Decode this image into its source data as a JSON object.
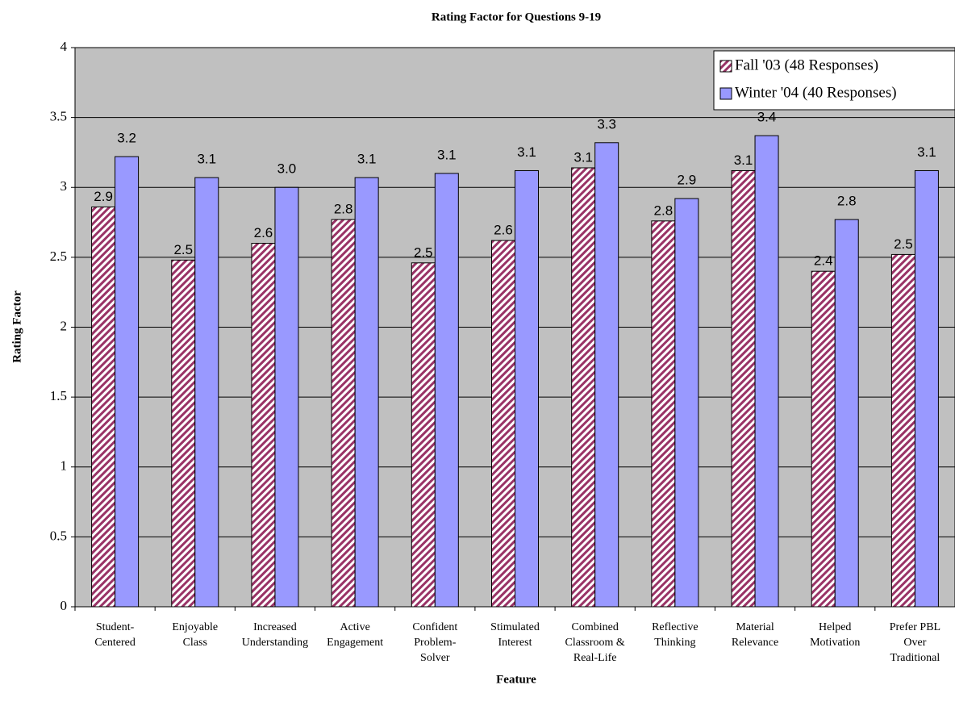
{
  "chart_data": {
    "type": "bar",
    "title": "Rating Factor for Questions 9-19",
    "xlabel": "Feature",
    "ylabel": "Rating Factor",
    "categories": [
      [
        "Student-",
        "Centered"
      ],
      [
        "Enjoyable",
        "Class"
      ],
      [
        "Increased",
        "Understanding"
      ],
      [
        "Active",
        "Engagement"
      ],
      [
        "Confident",
        "Problem-",
        "Solver"
      ],
      [
        "Stimulated",
        "Interest"
      ],
      [
        "Combined",
        "Classroom &",
        "Real-Life"
      ],
      [
        "Reflective",
        "Thinking"
      ],
      [
        "Material",
        "Relevance"
      ],
      [
        "Helped",
        "Motivation"
      ],
      [
        "Prefer PBL",
        "Over",
        "Traditional"
      ]
    ],
    "series": [
      {
        "name": "Fall '03 (48 Responses)",
        "color": "#993366",
        "hatch": true,
        "values": [
          2.86,
          2.48,
          2.6,
          2.77,
          2.46,
          2.62,
          3.14,
          2.76,
          3.12,
          2.4,
          2.52
        ],
        "value_labels": [
          "2.9",
          "2.5",
          "2.6",
          "2.8",
          "2.5",
          "2.6",
          "3.1",
          "2.8",
          "3.1",
          "2.4",
          "2.5"
        ]
      },
      {
        "name": "Winter '04 (40 Responses)",
        "color": "#9999ff",
        "hatch": false,
        "values": [
          3.22,
          3.07,
          3.0,
          3.07,
          3.1,
          3.12,
          3.32,
          2.92,
          3.37,
          2.77,
          3.12
        ],
        "value_labels": [
          "3.2",
          "3.1",
          "3.0",
          "3.1",
          "3.1",
          "3.1",
          "3.3",
          "2.9",
          "3.4",
          "2.8",
          "3.1"
        ]
      }
    ],
    "ylim": [
      0,
      4
    ],
    "yticks": [
      0,
      0.5,
      1,
      1.5,
      2,
      2.5,
      3,
      3.5,
      4
    ],
    "grid": true,
    "legend": "upper right"
  }
}
